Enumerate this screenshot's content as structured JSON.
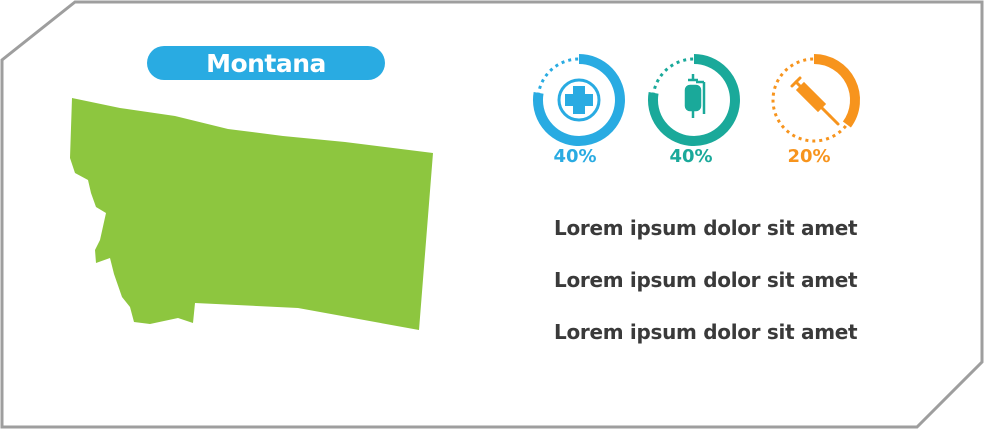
{
  "state": {
    "name": "Montana",
    "map_color": "#8dc63f",
    "pill_color": "#29abe2"
  },
  "frame_color": "#9e9e9e",
  "stats": [
    {
      "icon": "medical-cross-icon",
      "value": "40%",
      "fraction": 0.4,
      "color": "#29abe2"
    },
    {
      "icon": "iv-bag-icon",
      "value": "40%",
      "fraction": 0.4,
      "color": "#1aa99a"
    },
    {
      "icon": "syringe-icon",
      "value": "20%",
      "fraction": 0.2,
      "color": "#f7941d"
    }
  ],
  "text_lines": [
    "Lorem ipsum dolor sit amet",
    "Lorem ipsum dolor sit amet",
    "Lorem ipsum dolor sit amet"
  ]
}
